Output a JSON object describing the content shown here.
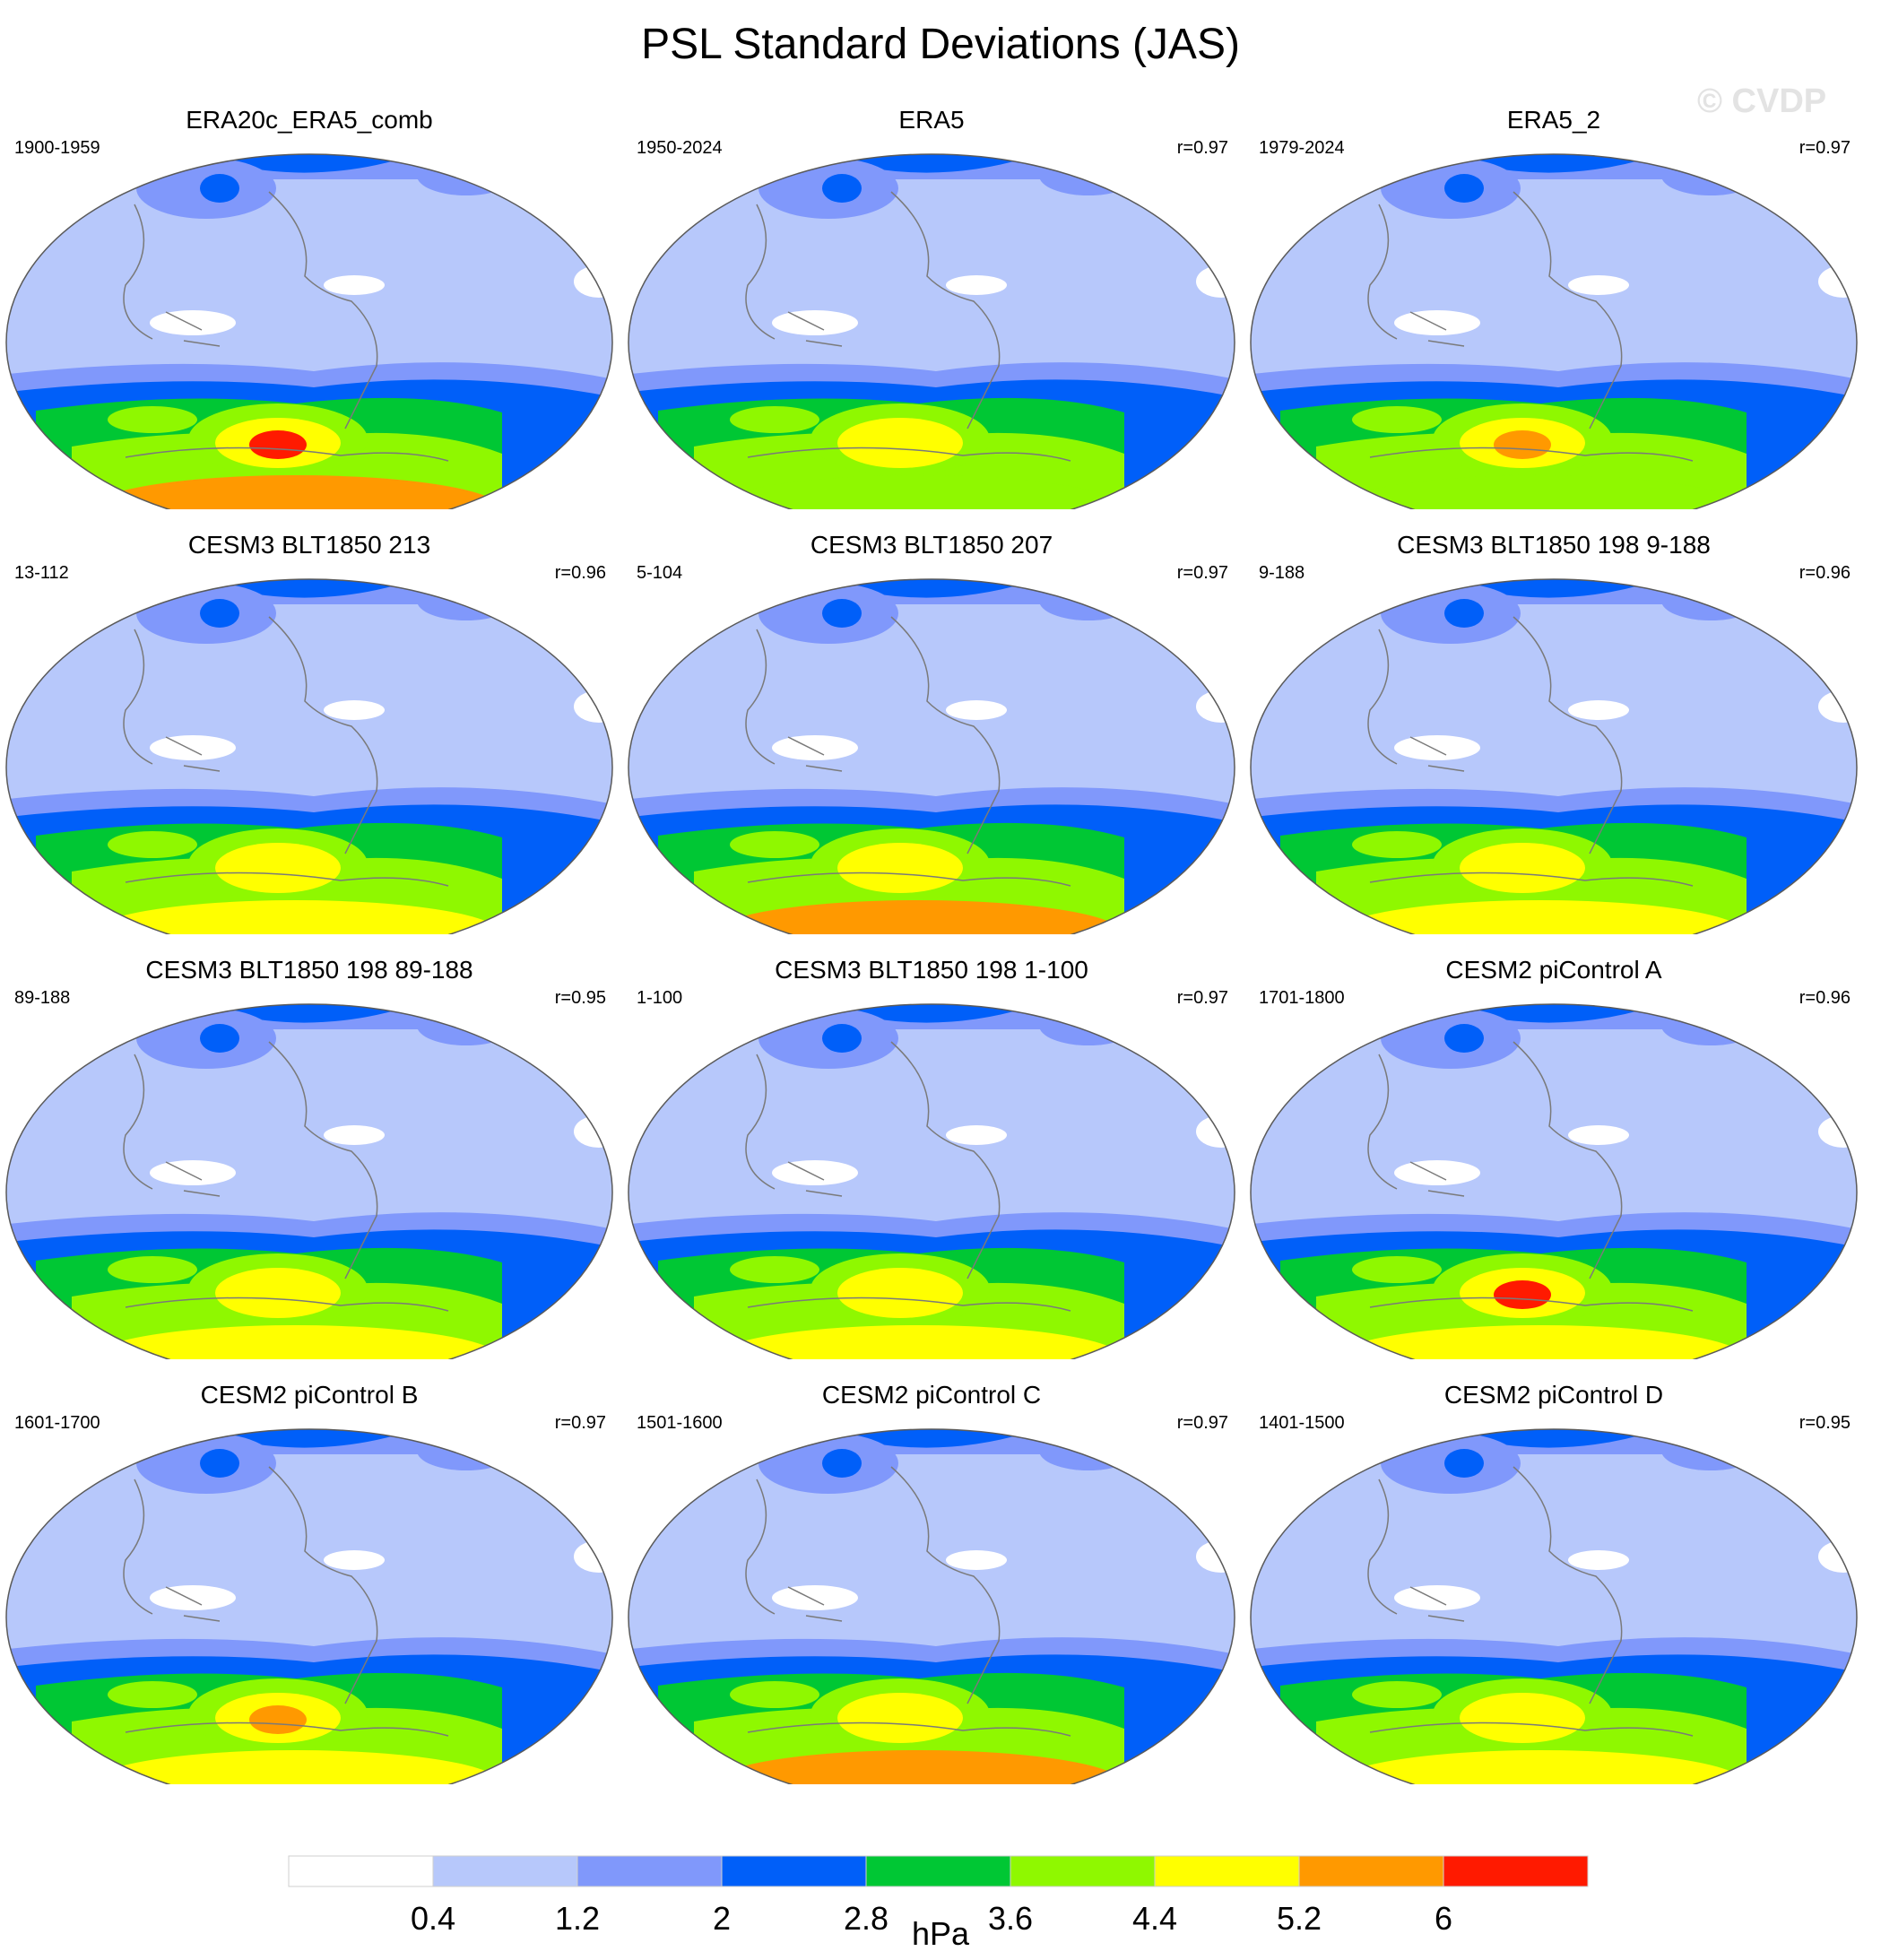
{
  "title": "PSL Standard Deviations (JAS)",
  "watermark": "© CVDP",
  "colors": {
    "ocean_light": "#b7c8fb",
    "levels": [
      "#ffffff",
      "#b7c8fb",
      "#8098fb",
      "#005ff9",
      "#00c734",
      "#8ff800",
      "#ffff00",
      "#ff9900",
      "#ff1a00"
    ],
    "coast": "#7a7a7a",
    "frame": "#5a5a5a"
  },
  "chart_data": [
    {
      "type": "heatmap",
      "title": "ERA20c_ERA5_comb",
      "years": "1900-1959",
      "r": "",
      "antarctic_level": 7,
      "hotspot_level": 8
    },
    {
      "type": "heatmap",
      "title": "ERA5",
      "years": "1950-2024",
      "r": "r=0.97",
      "antarctic_level": 5,
      "hotspot_level": 6
    },
    {
      "type": "heatmap",
      "title": "ERA5_2",
      "years": "1979-2024",
      "r": "r=0.97",
      "antarctic_level": 5,
      "hotspot_level": 7
    },
    {
      "type": "heatmap",
      "title": "CESM3 BLT1850 213",
      "years": "13-112",
      "r": "r=0.96",
      "antarctic_level": 6,
      "hotspot_level": 6
    },
    {
      "type": "heatmap",
      "title": "CESM3 BLT1850 207",
      "years": "5-104",
      "r": "r=0.97",
      "antarctic_level": 7,
      "hotspot_level": 6
    },
    {
      "type": "heatmap",
      "title": "CESM3 BLT1850 198 9-188",
      "years": "9-188",
      "r": "r=0.96",
      "antarctic_level": 6,
      "hotspot_level": 6
    },
    {
      "type": "heatmap",
      "title": "CESM3 BLT1850 198 89-188",
      "years": "89-188",
      "r": "r=0.95",
      "antarctic_level": 6,
      "hotspot_level": 6
    },
    {
      "type": "heatmap",
      "title": "CESM3 BLT1850 198 1-100",
      "years": "1-100",
      "r": "r=0.97",
      "antarctic_level": 6,
      "hotspot_level": 6
    },
    {
      "type": "heatmap",
      "title": "CESM2 piControl A",
      "years": "1701-1800",
      "r": "r=0.96",
      "antarctic_level": 6,
      "hotspot_level": 8
    },
    {
      "type": "heatmap",
      "title": "CESM2 piControl B",
      "years": "1601-1700",
      "r": "r=0.97",
      "antarctic_level": 6,
      "hotspot_level": 7
    },
    {
      "type": "heatmap",
      "title": "CESM2 piControl C",
      "years": "1501-1600",
      "r": "r=0.97",
      "antarctic_level": 7,
      "hotspot_level": 6
    },
    {
      "type": "heatmap",
      "title": "CESM2 piControl D",
      "years": "1401-1500",
      "r": "r=0.95",
      "antarctic_level": 6,
      "hotspot_level": 6
    }
  ],
  "colorbar": {
    "levels": [
      "0.4",
      "1.2",
      "2",
      "2.8",
      "3.6",
      "4.4",
      "5.2",
      "6"
    ],
    "units": "hPa"
  }
}
